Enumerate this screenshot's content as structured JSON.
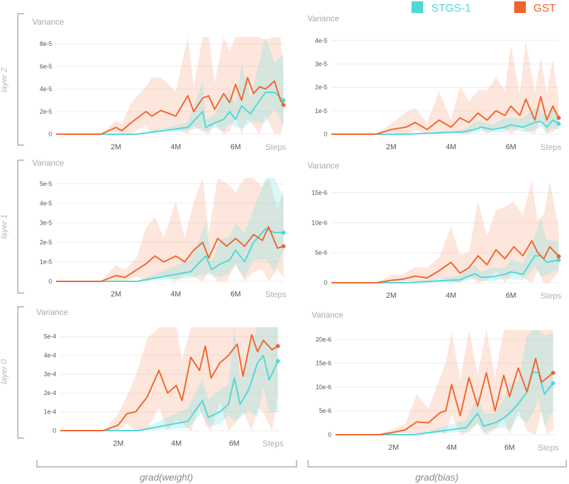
{
  "legend": [
    {
      "name": "STGS-1",
      "color": "#4fd8d8"
    },
    {
      "name": "GST",
      "color": "#f2642c"
    }
  ],
  "row_labels": [
    "layer 2",
    "layer 1",
    "layer 0"
  ],
  "col_labels": [
    "grad(weight)",
    "grad(bias)"
  ],
  "chart_data": [
    {
      "id": "l2w",
      "type": "line",
      "title": "Variance",
      "xlabel": "Steps",
      "xlim": [
        0,
        7.6
      ],
      "ylim": [
        0,
        8.6
      ],
      "xticks": [
        {
          "v": 2,
          "label": "2M"
        },
        {
          "v": 4,
          "label": "4M"
        },
        {
          "v": 6,
          "label": "6M"
        }
      ],
      "yticks": [
        {
          "v": 0,
          "label": "0"
        },
        {
          "v": 2,
          "label": "2e-5"
        },
        {
          "v": 4,
          "label": "4e-5"
        },
        {
          "v": 6,
          "label": "6e-5"
        },
        {
          "v": 8,
          "label": "8e-5"
        }
      ],
      "series": [
        {
          "name": "STGS-1",
          "x": [
            0,
            2.7,
            4.4,
            4.9,
            5.0,
            5.3,
            5.6,
            5.8,
            6.0,
            6.2,
            6.5,
            6.8,
            7.0,
            7.3,
            7.6
          ],
          "y": [
            0,
            0,
            0.6,
            2.0,
            0.6,
            1.0,
            1.3,
            2.0,
            1.3,
            2.5,
            1.8,
            3.0,
            3.7,
            3.7,
            3.0
          ]
        },
        {
          "name": "GST",
          "x": [
            0,
            1.5,
            2.0,
            2.2,
            2.5,
            3.0,
            3.2,
            3.5,
            4.0,
            4.4,
            4.6,
            4.9,
            5.1,
            5.3,
            5.6,
            5.8,
            6.0,
            6.2,
            6.4,
            6.6,
            6.8,
            7.0,
            7.3,
            7.5,
            7.6
          ],
          "y": [
            0,
            0,
            0.6,
            0.3,
            1.0,
            2.0,
            1.6,
            2.1,
            1.6,
            3.4,
            2.0,
            3.2,
            3.4,
            2.2,
            3.6,
            2.8,
            4.4,
            3.0,
            5.0,
            3.6,
            4.2,
            4.0,
            4.7,
            3.0,
            2.6
          ]
        }
      ]
    },
    {
      "id": "l2b",
      "type": "line",
      "title": "Variance",
      "xlabel": "Steps",
      "xlim": [
        0,
        7.6
      ],
      "ylim": [
        0,
        4.3
      ],
      "xticks": [
        {
          "v": 2,
          "label": "2M"
        },
        {
          "v": 4,
          "label": "4M"
        },
        {
          "v": 6,
          "label": "6M"
        }
      ],
      "yticks": [
        {
          "v": 0,
          "label": "0"
        },
        {
          "v": 1,
          "label": "1e-5"
        },
        {
          "v": 2,
          "label": "2e-5"
        },
        {
          "v": 3,
          "label": "3e-5"
        },
        {
          "v": 4,
          "label": "4e-5"
        }
      ],
      "series": [
        {
          "name": "STGS-1",
          "x": [
            0,
            2.5,
            4.4,
            4.8,
            5.0,
            5.4,
            5.8,
            6.0,
            6.4,
            6.8,
            7.0,
            7.2,
            7.4,
            7.6
          ],
          "y": [
            0,
            0,
            0.1,
            0.2,
            0.3,
            0.2,
            0.3,
            0.4,
            0.3,
            0.5,
            0.55,
            0.3,
            0.6,
            0.45
          ]
        },
        {
          "name": "GST",
          "x": [
            0,
            1.5,
            2.0,
            2.5,
            2.8,
            3.2,
            3.6,
            4.0,
            4.3,
            4.6,
            4.9,
            5.2,
            5.5,
            5.8,
            6.0,
            6.3,
            6.5,
            6.8,
            7.0,
            7.2,
            7.4,
            7.6
          ],
          "y": [
            0,
            0,
            0.2,
            0.3,
            0.5,
            0.2,
            0.6,
            0.3,
            0.7,
            0.5,
            0.9,
            0.6,
            1.0,
            0.8,
            1.2,
            0.8,
            1.5,
            0.6,
            1.6,
            0.6,
            1.2,
            0.7
          ]
        }
      ]
    },
    {
      "id": "l1w",
      "type": "line",
      "title": "Variance",
      "xlabel": "Steps",
      "xlim": [
        0,
        7.6
      ],
      "ylim": [
        0,
        5.3
      ],
      "xticks": [
        {
          "v": 2,
          "label": "2M"
        },
        {
          "v": 4,
          "label": "4M"
        },
        {
          "v": 6,
          "label": "6M"
        }
      ],
      "yticks": [
        {
          "v": 0,
          "label": "0"
        },
        {
          "v": 1,
          "label": "1e-5"
        },
        {
          "v": 2,
          "label": "2e-5"
        },
        {
          "v": 3,
          "label": "3e-5"
        },
        {
          "v": 4,
          "label": "4e-5"
        },
        {
          "v": 5,
          "label": "5e-5"
        }
      ],
      "series": [
        {
          "name": "STGS-1",
          "x": [
            0,
            2.7,
            4.5,
            5.0,
            5.2,
            5.5,
            5.8,
            6.0,
            6.3,
            6.6,
            7.0,
            7.3,
            7.6
          ],
          "y": [
            0,
            0,
            0.5,
            1.3,
            0.6,
            0.9,
            1.1,
            1.6,
            1.0,
            2.0,
            2.7,
            2.5,
            2.5
          ]
        },
        {
          "name": "GST",
          "x": [
            0,
            1.5,
            2.0,
            2.3,
            2.7,
            3.0,
            3.3,
            3.6,
            4.0,
            4.3,
            4.6,
            4.9,
            5.1,
            5.4,
            5.7,
            6.0,
            6.3,
            6.6,
            6.9,
            7.1,
            7.4,
            7.6
          ],
          "y": [
            0,
            0,
            0.3,
            0.2,
            0.6,
            0.9,
            1.3,
            1.0,
            1.3,
            1.0,
            1.6,
            2.0,
            1.2,
            2.2,
            1.8,
            2.2,
            1.8,
            2.4,
            2.1,
            2.8,
            1.7,
            1.8
          ]
        }
      ]
    },
    {
      "id": "l1b",
      "type": "line",
      "title": "Variance",
      "xlabel": "Steps",
      "xlim": [
        0,
        7.6
      ],
      "ylim": [
        0,
        17
      ],
      "xticks": [
        {
          "v": 2,
          "label": "2M"
        },
        {
          "v": 4,
          "label": "4M"
        },
        {
          "v": 6,
          "label": "6M"
        }
      ],
      "yticks": [
        {
          "v": 0,
          "label": "0"
        },
        {
          "v": 5,
          "label": "5e-6"
        },
        {
          "v": 10,
          "label": "10e-6"
        },
        {
          "v": 15,
          "label": "15e-6"
        }
      ],
      "series": [
        {
          "name": "STGS-1",
          "x": [
            0,
            2.5,
            4.3,
            4.8,
            5.0,
            5.4,
            5.8,
            6.0,
            6.4,
            6.8,
            7.0,
            7.2,
            7.6
          ],
          "y": [
            0,
            0,
            0.5,
            1.5,
            0.9,
            1.0,
            1.4,
            1.8,
            1.4,
            4.5,
            4.5,
            3.4,
            3.8
          ]
        },
        {
          "name": "GST",
          "x": [
            0,
            1.5,
            2.0,
            2.4,
            2.8,
            3.2,
            3.6,
            4.0,
            4.3,
            4.6,
            4.9,
            5.2,
            5.5,
            5.8,
            6.1,
            6.4,
            6.7,
            6.9,
            7.1,
            7.3,
            7.6
          ],
          "y": [
            0,
            0,
            0.4,
            0.6,
            1.1,
            0.8,
            2.0,
            3.4,
            1.6,
            2.5,
            4.5,
            3.0,
            5.5,
            4.0,
            6.0,
            4.5,
            7.0,
            5.0,
            4.0,
            6.0,
            4.4
          ]
        }
      ]
    },
    {
      "id": "l0w",
      "type": "line",
      "title": "Variance",
      "xlabel": "Steps",
      "xlim": [
        0,
        7.6
      ],
      "ylim": [
        0,
        5.5
      ],
      "xticks": [
        {
          "v": 2,
          "label": "2M"
        },
        {
          "v": 4,
          "label": "4M"
        },
        {
          "v": 6,
          "label": "6M"
        }
      ],
      "yticks": [
        {
          "v": 0,
          "label": "0"
        },
        {
          "v": 1,
          "label": "1e-4"
        },
        {
          "v": 2,
          "label": "2e-4"
        },
        {
          "v": 3,
          "label": "3e-4"
        },
        {
          "v": 4,
          "label": "4e-4"
        },
        {
          "v": 5,
          "label": "5e-4"
        }
      ],
      "series": [
        {
          "name": "STGS-1",
          "x": [
            0,
            2.7,
            4.4,
            4.9,
            5.1,
            5.5,
            5.8,
            6.0,
            6.2,
            6.5,
            6.8,
            7.0,
            7.2,
            7.5
          ],
          "y": [
            0,
            0,
            0.5,
            1.6,
            0.7,
            1.0,
            1.4,
            2.8,
            1.4,
            2.2,
            3.6,
            4.0,
            2.7,
            3.7
          ]
        },
        {
          "name": "GST",
          "x": [
            0,
            1.5,
            2.0,
            2.3,
            2.6,
            3.0,
            3.4,
            3.7,
            4.0,
            4.2,
            4.5,
            4.8,
            5.0,
            5.2,
            5.5,
            5.8,
            6.1,
            6.3,
            6.6,
            6.8,
            7.0,
            7.3,
            7.5
          ],
          "y": [
            0,
            0,
            0.3,
            0.9,
            1.0,
            1.8,
            3.2,
            2.0,
            2.4,
            1.6,
            3.9,
            3.2,
            4.5,
            2.8,
            3.6,
            4.0,
            4.6,
            2.9,
            5.1,
            4.2,
            4.8,
            4.3,
            4.5
          ]
        }
      ]
    },
    {
      "id": "l0b",
      "type": "line",
      "title": "Variance",
      "xlabel": "Steps",
      "xlim": [
        0,
        7.6
      ],
      "ylim": [
        0,
        22
      ],
      "xticks": [
        {
          "v": 2,
          "label": "2M"
        },
        {
          "v": 4,
          "label": "4M"
        },
        {
          "v": 6,
          "label": "6M"
        }
      ],
      "yticks": [
        {
          "v": 0,
          "label": "0"
        },
        {
          "v": 5,
          "label": "5e-6"
        },
        {
          "v": 10,
          "label": "10e-6"
        },
        {
          "v": 15,
          "label": "15e-6"
        },
        {
          "v": 20,
          "label": "20e-6"
        }
      ],
      "series": [
        {
          "name": "STGS-1",
          "x": [
            0,
            2.7,
            4.5,
            4.9,
            5.1,
            5.5,
            5.8,
            6.0,
            6.3,
            6.6,
            6.8,
            7.0,
            7.2,
            7.5
          ],
          "y": [
            0,
            0,
            1.5,
            4.5,
            1.8,
            2.5,
            3.5,
            4.5,
            6.5,
            9.0,
            13.2,
            13.0,
            8.5,
            10.8
          ]
        },
        {
          "name": "GST",
          "x": [
            0,
            1.5,
            2.0,
            2.4,
            2.8,
            3.2,
            3.6,
            3.8,
            4.0,
            4.3,
            4.6,
            4.9,
            5.2,
            5.5,
            5.8,
            6.0,
            6.3,
            6.6,
            6.9,
            7.1,
            7.3,
            7.5
          ],
          "y": [
            0,
            0,
            0.5,
            1.0,
            2.7,
            2.5,
            4.6,
            5.0,
            10.5,
            4.0,
            12.0,
            6.0,
            13.0,
            5.0,
            12.5,
            8.0,
            14.0,
            9.0,
            16.0,
            11.0,
            12.0,
            13.0
          ]
        }
      ]
    }
  ]
}
